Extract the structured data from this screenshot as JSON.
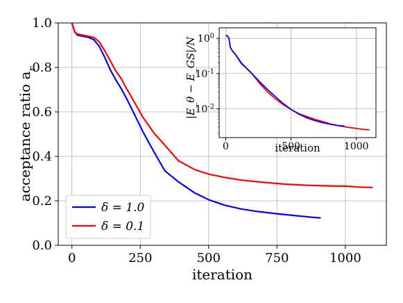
{
  "chart_data": [
    {
      "type": "line",
      "xlabel": "iteration",
      "ylabel": "acceptance ratio a_r",
      "xlim": [
        -50,
        1150
      ],
      "ylim": [
        0.0,
        1.0
      ],
      "xticks": [
        0,
        250,
        500,
        750,
        1000
      ],
      "yticks": [
        0.0,
        0.2,
        0.4,
        0.6,
        0.8,
        1.0
      ],
      "xtick_labels": [
        "0",
        "250",
        "500",
        "750",
        "1000"
      ],
      "ytick_labels": [
        "0.0",
        "0.2",
        "0.4",
        "0.6",
        "0.8",
        "1.0"
      ],
      "grid": true,
      "legend_position": "bottom-left",
      "series": [
        {
          "name": "δ = 1.0",
          "color": "#0000ff",
          "x": [
            0,
            5,
            10,
            20,
            40,
            60,
            80,
            100,
            120,
            140,
            160,
            180,
            200,
            230,
            260,
            300,
            340,
            390,
            450,
            500,
            560,
            620,
            680,
            750,
            820,
            880,
            910
          ],
          "y": [
            1.0,
            0.98,
            0.96,
            0.945,
            0.94,
            0.935,
            0.925,
            0.895,
            0.845,
            0.79,
            0.745,
            0.705,
            0.66,
            0.585,
            0.51,
            0.42,
            0.335,
            0.285,
            0.235,
            0.205,
            0.18,
            0.163,
            0.152,
            0.142,
            0.133,
            0.126,
            0.123
          ]
        },
        {
          "name": "δ = 0.1",
          "color": "#ff0000",
          "x": [
            0,
            5,
            10,
            20,
            40,
            60,
            80,
            100,
            120,
            140,
            160,
            180,
            200,
            230,
            260,
            300,
            340,
            390,
            450,
            500,
            560,
            620,
            700,
            780,
            860,
            950,
            1000,
            1050,
            1100
          ],
          "y": [
            1.0,
            0.98,
            0.96,
            0.95,
            0.945,
            0.94,
            0.935,
            0.915,
            0.875,
            0.83,
            0.785,
            0.75,
            0.705,
            0.64,
            0.575,
            0.505,
            0.45,
            0.38,
            0.34,
            0.32,
            0.305,
            0.293,
            0.283,
            0.275,
            0.27,
            0.267,
            0.266,
            0.262,
            0.26
          ]
        }
      ]
    },
    {
      "type": "line",
      "xlabel": "iteration",
      "ylabel": "|E_θ − E_GS|/N",
      "xlim": [
        -50,
        1150
      ],
      "ylim": [
        0.0015,
        2.0
      ],
      "yscale": "log",
      "xticks": [
        0,
        500,
        1000
      ],
      "xtick_labels": [
        "0",
        "500",
        "1000"
      ],
      "yticks": [
        0.01,
        0.1,
        1.0
      ],
      "grid": true,
      "series": [
        {
          "name": "δ = 1.0",
          "color": "#0000ff",
          "x": [
            0,
            5,
            15,
            25,
            35,
            50,
            80,
            120,
            160,
            200,
            260,
            320,
            380,
            440,
            500,
            560,
            620,
            680,
            740,
            800,
            860,
            910
          ],
          "y": [
            1.2,
            1.2,
            1.15,
            1.0,
            0.55,
            0.45,
            0.33,
            0.2,
            0.14,
            0.1,
            0.058,
            0.035,
            0.022,
            0.014,
            0.0095,
            0.007,
            0.0055,
            0.0046,
            0.004,
            0.0036,
            0.0033,
            0.0032
          ]
        },
        {
          "name": "δ = 0.1",
          "color": "#ff0000",
          "x": [
            0,
            5,
            15,
            25,
            35,
            50,
            80,
            120,
            160,
            200,
            260,
            320,
            380,
            440,
            500,
            560,
            620,
            680,
            740,
            800,
            860,
            920,
            980,
            1040,
            1100
          ],
          "y": [
            1.2,
            1.2,
            1.15,
            1.0,
            0.55,
            0.45,
            0.32,
            0.19,
            0.14,
            0.1,
            0.052,
            0.03,
            0.019,
            0.013,
            0.0095,
            0.0072,
            0.006,
            0.005,
            0.0043,
            0.0037,
            0.0033,
            0.003,
            0.0028,
            0.0026,
            0.0025
          ]
        }
      ]
    }
  ]
}
